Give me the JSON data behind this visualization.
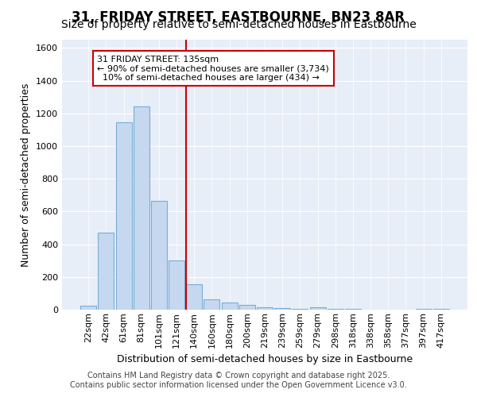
{
  "title_line1": "31, FRIDAY STREET, EASTBOURNE, BN23 8AR",
  "title_line2": "Size of property relative to semi-detached houses in Eastbourne",
  "xlabel": "Distribution of semi-detached houses by size in Eastbourne",
  "ylabel": "Number of semi-detached properties",
  "footer_line1": "Contains HM Land Registry data © Crown copyright and database right 2025.",
  "footer_line2": "Contains public sector information licensed under the Open Government Licence v3.0.",
  "bar_labels": [
    "22sqm",
    "42sqm",
    "61sqm",
    "81sqm",
    "101sqm",
    "121sqm",
    "140sqm",
    "160sqm",
    "180sqm",
    "200sqm",
    "219sqm",
    "239sqm",
    "259sqm",
    "279sqm",
    "298sqm",
    "318sqm",
    "338sqm",
    "358sqm",
    "377sqm",
    "397sqm",
    "417sqm"
  ],
  "bar_values": [
    25,
    470,
    1145,
    1240,
    665,
    300,
    155,
    65,
    45,
    30,
    15,
    10,
    5,
    15,
    5,
    5,
    0,
    0,
    0,
    5,
    5
  ],
  "bar_color": "#c5d8f0",
  "bar_edge_color": "#7aadd4",
  "vline_x_idx": 6,
  "vline_color": "#cc0000",
  "annotation_text": "31 FRIDAY STREET: 135sqm\n← 90% of semi-detached houses are smaller (3,734)\n  10% of semi-detached houses are larger (434) →",
  "ylim": [
    0,
    1650
  ],
  "yticks": [
    0,
    200,
    400,
    600,
    800,
    1000,
    1200,
    1400,
    1600
  ],
  "background_color": "#ffffff",
  "plot_bg_color": "#e8eef7",
  "grid_color": "#ffffff",
  "title_fontsize": 12,
  "subtitle_fontsize": 10,
  "axis_label_fontsize": 9,
  "tick_fontsize": 8,
  "annotation_fontsize": 8,
  "footer_fontsize": 7
}
